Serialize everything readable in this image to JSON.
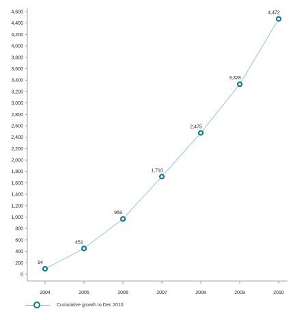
{
  "chart_data": {
    "type": "line",
    "title": "",
    "xlabel": "",
    "ylabel": "",
    "x": [
      "2004",
      "2005",
      "2006",
      "2007",
      "2008",
      "2009",
      "2010"
    ],
    "series": [
      {
        "name": "Cumulative growth to Dec 2010",
        "values": [
          94,
          451,
          968,
          1710,
          2475,
          3328,
          4472
        ],
        "labels": [
          "94",
          "451",
          "968",
          "1,710",
          "2,475",
          "3,328",
          "4,472"
        ]
      }
    ],
    "ylim": [
      0,
      4600
    ],
    "yticks": [
      "0",
      "200",
      "400",
      "600",
      "800",
      "1,000",
      "1,200",
      "1,400",
      "1,600",
      "1,800",
      "2,000",
      "2,200",
      "2,400",
      "2,600",
      "2,800",
      "3,000",
      "3,200",
      "3,400",
      "3,600",
      "3,800",
      "4,000",
      "4,200",
      "4,400",
      "4,600"
    ],
    "grid": false,
    "legend_position": "bottom-left",
    "colors": {
      "line": "#7fc3d3",
      "marker": "#0d7a8f",
      "axis": "#888888",
      "text": "#222222"
    }
  }
}
